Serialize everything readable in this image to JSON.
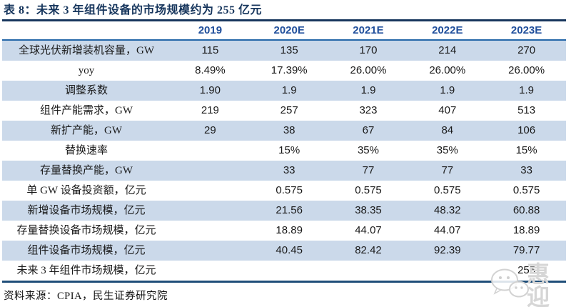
{
  "title": "表 8：未来 3 年组件设备的市场规模约为 255 亿元",
  "source": "资料来源：CPIA，民生证券研究院",
  "watermark": {
    "icon": "wechat-icon",
    "text": "惠迎"
  },
  "colors": {
    "title_navy": "#17365D",
    "header_blue": "#1F4E9B",
    "rule_top": "#17365D",
    "rule_header": "#2466A8",
    "rule_bottom": "#1F4E79",
    "row_alt": "#CBD9EA",
    "body_text": "#1A1A1A",
    "watermark_gray": "#D6D6D6"
  },
  "chart_data": {
    "type": "table",
    "title": "未来 3 年组件设备的市场规模约为 255 亿元",
    "columns": [
      "",
      "2019",
      "2020E",
      "2021E",
      "2022E",
      "2023E"
    ],
    "rows": [
      {
        "label": "全球光伏新增装机容量，GW",
        "values": [
          "115",
          "135",
          "170",
          "214",
          "270"
        ]
      },
      {
        "label": "yoy",
        "values": [
          "8.49%",
          "17.39%",
          "26.00%",
          "26.00%",
          "26.00%"
        ]
      },
      {
        "label": "调整系数",
        "values": [
          "1.90",
          "1.9",
          "1.9",
          "1.9",
          "1.9"
        ]
      },
      {
        "label": "组件产能需求，GW",
        "values": [
          "219",
          "257",
          "323",
          "407",
          "513"
        ]
      },
      {
        "label": "新扩产能，GW",
        "values": [
          "29",
          "38",
          "67",
          "84",
          "106"
        ]
      },
      {
        "label": "替换速率",
        "values": [
          "",
          "15%",
          "35%",
          "35%",
          "15%"
        ]
      },
      {
        "label": "存量替换产能，GW",
        "values": [
          "",
          "33",
          "77",
          "77",
          "33"
        ]
      },
      {
        "label": "单 GW 设备投资额，亿元",
        "values": [
          "",
          "0.575",
          "0.575",
          "0.575",
          "0.575"
        ]
      },
      {
        "label": "新增设备市场规模，亿元",
        "values": [
          "",
          "21.56",
          "38.35",
          "48.32",
          "60.88"
        ]
      },
      {
        "label": "存量替换设备市场规模，亿元",
        "values": [
          "",
          "18.89",
          "44.07",
          "44.07",
          "18.89"
        ]
      },
      {
        "label": "组件设备市场规模，亿元",
        "values": [
          "",
          "40.45",
          "82.42",
          "92.39",
          "79.77"
        ]
      },
      {
        "label": "未来 3 年组件市场规模，亿元",
        "values": [
          "",
          "",
          "",
          "",
          "255"
        ]
      }
    ]
  }
}
